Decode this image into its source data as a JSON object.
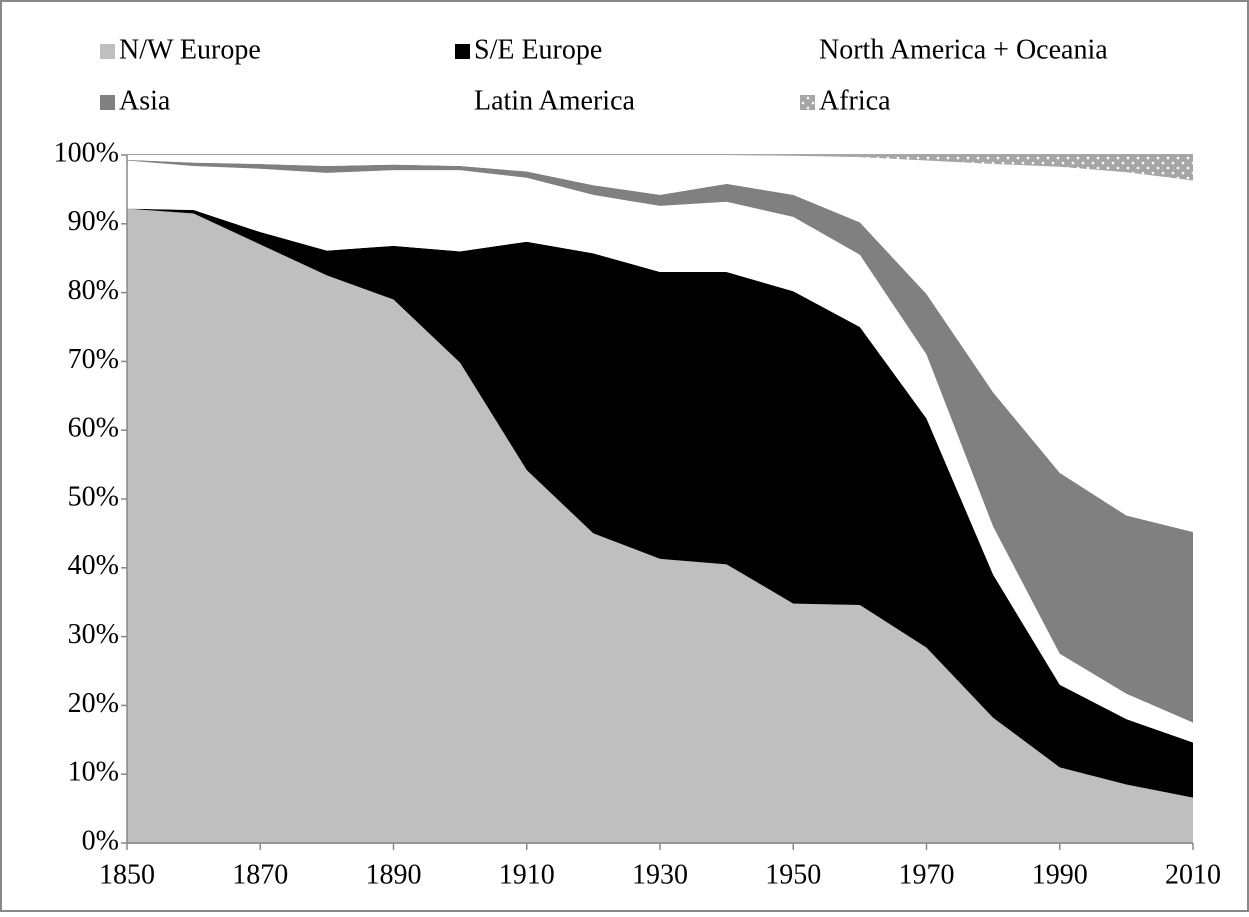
{
  "chart_data": {
    "type": "stacked-area",
    "x": [
      1850,
      1860,
      1870,
      1880,
      1890,
      1900,
      1910,
      1920,
      1930,
      1940,
      1950,
      1960,
      1970,
      1980,
      1990,
      2000,
      2010
    ],
    "series": [
      {
        "name": "N/W Europe",
        "color": "#bfbfbf",
        "values": [
          92.2,
          91.5,
          87,
          82.5,
          79,
          69.8,
          54.2,
          45,
          41.3,
          40.5,
          34.8,
          34.6,
          28.4,
          18.2,
          11,
          8.5,
          6.6
        ]
      },
      {
        "name": "S/E Europe",
        "color": "#000000",
        "values": [
          0,
          0.5,
          1.8,
          3.6,
          7.8,
          16.2,
          33.2,
          40.7,
          41.7,
          42.5,
          45.4,
          40.4,
          33.3,
          20.8,
          12,
          9.5,
          8
        ]
      },
      {
        "name": "North America + Oceania",
        "color": "#ffffff",
        "values": [
          7,
          6.4,
          9.2,
          11.3,
          11,
          11.8,
          9.3,
          8.5,
          9.6,
          10.2,
          10.8,
          10.5,
          9.3,
          7,
          4.5,
          3.7,
          2.9
        ]
      },
      {
        "name": "Asia",
        "color": "#808080",
        "values": [
          0.1,
          0.5,
          0.7,
          1,
          0.8,
          0.6,
          0.9,
          1.4,
          1.6,
          2.6,
          3.2,
          4.7,
          8.8,
          19.5,
          26.3,
          25.9,
          27.7
        ]
      },
      {
        "name": "Latin America",
        "color": "#ffffff",
        "values": [
          0.7,
          1.1,
          1.3,
          1.6,
          1.4,
          1.6,
          2.4,
          4.4,
          5.8,
          4.2,
          5.7,
          9.5,
          19.4,
          33.2,
          44.5,
          49.9,
          51.1
        ]
      },
      {
        "name": "Africa",
        "color": "#a6a6a6",
        "pattern": "dots",
        "values": [
          0,
          0,
          0,
          0,
          0,
          0,
          0,
          0,
          0,
          0,
          0.1,
          0.3,
          0.8,
          1.3,
          1.7,
          2.5,
          3.7
        ]
      }
    ],
    "xlim": [
      1850,
      2010
    ],
    "xticks": [
      1850,
      1870,
      1890,
      1910,
      1930,
      1950,
      1970,
      1990,
      2010
    ],
    "ylim": [
      0,
      100
    ],
    "yticks": [
      {
        "value": 0,
        "label": "0%"
      },
      {
        "value": 10,
        "label": "10%"
      },
      {
        "value": 20,
        "label": "20%"
      },
      {
        "value": 30,
        "label": "30%"
      },
      {
        "value": 40,
        "label": "40%"
      },
      {
        "value": 50,
        "label": "50%"
      },
      {
        "value": 60,
        "label": "60%"
      },
      {
        "value": 70,
        "label": "70%"
      },
      {
        "value": 80,
        "label": "80%"
      },
      {
        "value": 90,
        "label": "90%"
      },
      {
        "value": 100,
        "label": "100%"
      }
    ],
    "grid": true,
    "legend": "top"
  }
}
